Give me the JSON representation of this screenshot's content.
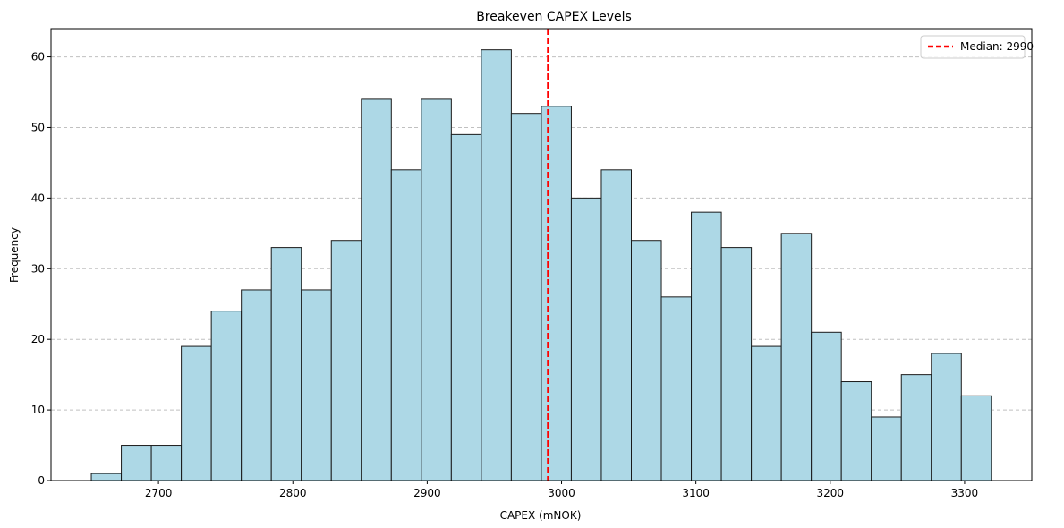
{
  "chart_data": {
    "type": "bar",
    "title": "Breakeven CAPEX  Levels",
    "xlabel": "CAPEX (mNOK)",
    "ylabel": "Frequency",
    "xlim": [
      2620,
      3350
    ],
    "ylim": [
      0,
      64
    ],
    "grid": "y-dashed",
    "legend_position": "top-right",
    "bin_start": 2650,
    "bin_width": 22.33,
    "values": [
      1,
      5,
      5,
      19,
      24,
      27,
      33,
      27,
      34,
      54,
      44,
      54,
      49,
      61,
      52,
      53,
      40,
      44,
      34,
      26,
      38,
      33,
      19,
      35,
      21,
      14,
      9,
      15,
      18,
      12
    ],
    "x_ticks": [
      2700,
      2800,
      2900,
      3000,
      3100,
      3200,
      3300
    ],
    "x_tick_labels": [
      "2700",
      "2800",
      "2900",
      "3000",
      "3100",
      "3200",
      "3300"
    ],
    "y_ticks": [
      0,
      10,
      20,
      30,
      40,
      50,
      60
    ],
    "y_tick_labels": [
      "0",
      "10",
      "20",
      "30",
      "40",
      "50",
      "60"
    ],
    "median": 2990,
    "legend": [
      {
        "label": "Median: 2990",
        "style": "dashed-line"
      }
    ],
    "colors": {
      "bar_fill": "#add8e6",
      "bar_edge": "#1a1a1a",
      "median_line": "#ff0000",
      "grid": "#c0c0c0"
    }
  }
}
